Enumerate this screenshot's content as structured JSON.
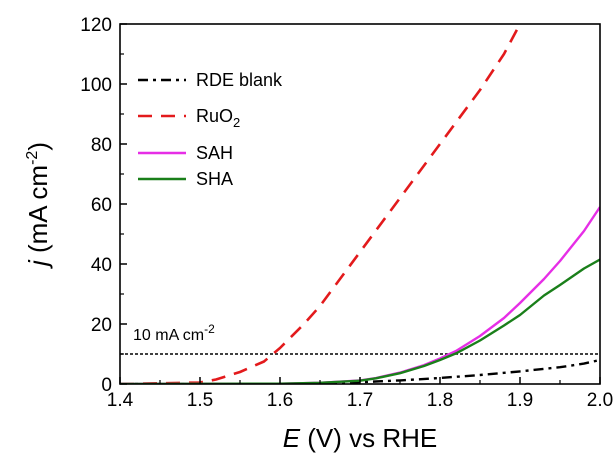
{
  "chart_data": {
    "type": "line",
    "xlabel": {
      "var": "E",
      "rest": " (V) vs RHE"
    },
    "ylabel": {
      "var": "j",
      "pre": " (mA cm",
      "sup": "-2",
      "post": ")"
    },
    "xlim": [
      1.4,
      2.0
    ],
    "ylim": [
      0,
      120
    ],
    "xticks": [
      "1.4",
      "1.5",
      "1.6",
      "1.7",
      "1.8",
      "1.9",
      "2.0"
    ],
    "yticks": [
      "0",
      "20",
      "40",
      "60",
      "80",
      "100",
      "120"
    ],
    "grid": false,
    "legend_position": "top-left",
    "reference_line": {
      "y": 10,
      "label": {
        "text": "10 mA cm",
        "sup": "-2"
      }
    },
    "series": [
      {
        "name": "RDE blank",
        "name_sub": "",
        "color": "#000000",
        "dash": "dashdot",
        "x": [
          1.4,
          1.5,
          1.6,
          1.65,
          1.7,
          1.75,
          1.8,
          1.85,
          1.9,
          1.95,
          1.98,
          2.0
        ],
        "y": [
          0,
          0,
          0,
          0.2,
          0.6,
          1.2,
          2.0,
          3.0,
          4.2,
          5.6,
          6.8,
          8.0
        ]
      },
      {
        "name": "RuO",
        "name_sub": "2",
        "color": "#e31a1c",
        "dash": "dash",
        "x": [
          1.4,
          1.5,
          1.52,
          1.55,
          1.58,
          1.6,
          1.63,
          1.65,
          1.7,
          1.75,
          1.8,
          1.85,
          1.88,
          1.9
        ],
        "y": [
          0,
          0.5,
          1.5,
          4,
          7.5,
          12,
          20,
          26,
          44,
          62,
          80,
          98,
          110,
          120
        ]
      },
      {
        "name": "SAH",
        "name_sub": "",
        "color": "#e62ee6",
        "dash": "solid",
        "x": [
          1.4,
          1.6,
          1.65,
          1.7,
          1.72,
          1.75,
          1.78,
          1.8,
          1.82,
          1.85,
          1.88,
          1.9,
          1.93,
          1.95,
          1.98,
          2.0
        ],
        "y": [
          0,
          0.1,
          0.4,
          1.2,
          2.0,
          3.8,
          6.3,
          8.5,
          11.0,
          16.0,
          22.0,
          27.0,
          35.0,
          41.0,
          51.0,
          59.0
        ]
      },
      {
        "name": "SHA",
        "name_sub": "",
        "color": "#1a7f1a",
        "dash": "solid",
        "x": [
          1.4,
          1.6,
          1.65,
          1.7,
          1.72,
          1.75,
          1.78,
          1.8,
          1.82,
          1.85,
          1.88,
          1.9,
          1.93,
          1.95,
          1.98,
          2.0
        ],
        "y": [
          0,
          0.1,
          0.4,
          1.1,
          1.9,
          3.6,
          6.0,
          8.0,
          10.2,
          14.5,
          19.5,
          23.0,
          29.5,
          33.0,
          38.5,
          41.5
        ]
      }
    ]
  }
}
